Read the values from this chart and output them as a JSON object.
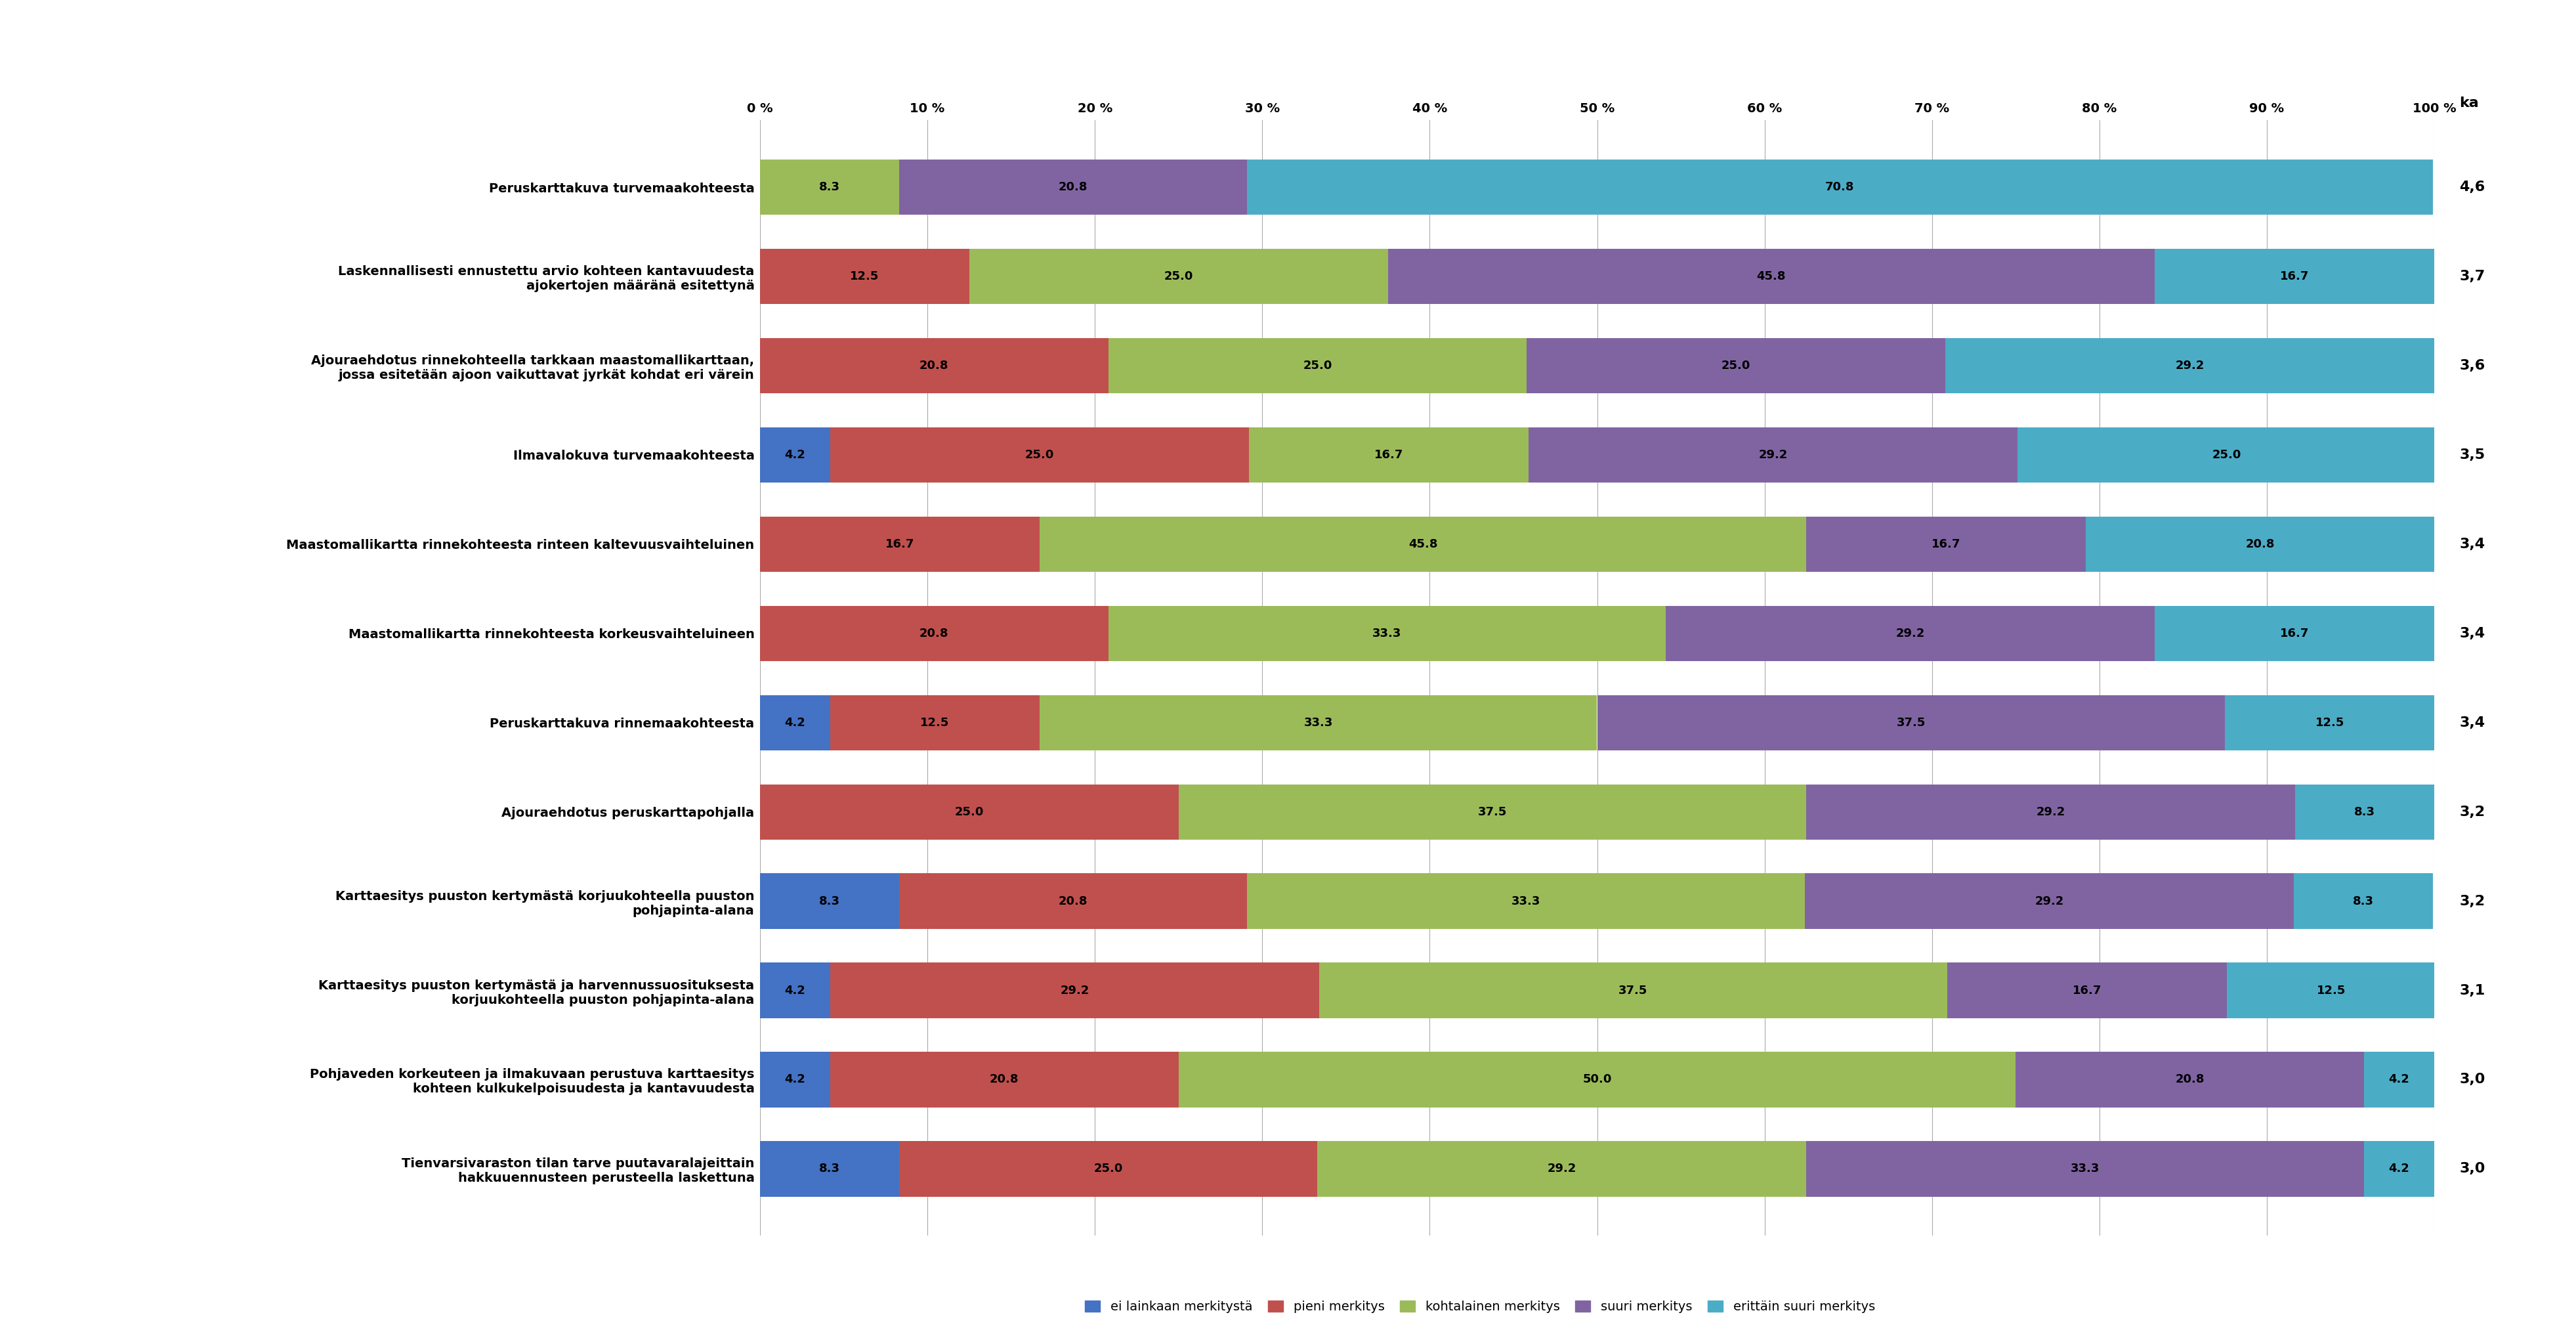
{
  "categories": [
    "Peruskarttakuva turvemaakohteesta",
    "Laskennallisesti ennustettu arvio kohteen kantavuudesta\najokertojen määränä esitettynä",
    "Ajouraehdotus rinnekohteella tarkkaan maastomallikarttaan,\njossa esitetään ajoon vaikuttavat jyrkät kohdat eri värein",
    "Ilmavalokuva turvemaakohteesta",
    "Maastomallikartta rinnekohteesta rinteen kaltevuusvaihteluinen",
    "Maastomallikartta rinnekohteesta korkeusvaihteluineen",
    "Peruskarttakuva rinnemaakohteesta",
    "Ajouraehdotus peruskarttapohjalla",
    "Karttaesitys puuston kertymästä korjuukohteella puuston\npohjapinta-alana",
    "Karttaesitys puuston kertymästä ja harvennussuosituksesta\nkorjuukohteella puuston pohjapinta-alana",
    "Pohjaveden korkeuteen ja ilmakuvaan perustuva karttaesitys\nkohteen kulkukelpoisuudesta ja kantavuudesta",
    "Tienvarsivaraston tilan tarve puutavaralajeittain\nhakkuuennusteen perusteella laskettuna"
  ],
  "ka_values": [
    "4,6",
    "3,7",
    "3,6",
    "3,5",
    "3,4",
    "3,4",
    "3,4",
    "3,2",
    "3,2",
    "3,1",
    "3,0",
    "3,0"
  ],
  "segments": [
    [
      0.0,
      0.0,
      8.3,
      20.8,
      70.8
    ],
    [
      0.0,
      12.5,
      25.0,
      45.8,
      16.7
    ],
    [
      0.0,
      20.8,
      25.0,
      25.0,
      29.2
    ],
    [
      4.2,
      25.0,
      16.7,
      29.2,
      25.0
    ],
    [
      0.0,
      16.7,
      45.8,
      16.7,
      20.8
    ],
    [
      0.0,
      20.8,
      33.3,
      29.2,
      16.7
    ],
    [
      4.2,
      12.5,
      33.3,
      37.5,
      12.5
    ],
    [
      0.0,
      25.0,
      37.5,
      29.2,
      8.3
    ],
    [
      8.3,
      20.8,
      33.3,
      29.2,
      8.3
    ],
    [
      4.2,
      29.2,
      37.5,
      16.7,
      12.5
    ],
    [
      4.2,
      20.8,
      50.0,
      20.8,
      4.2
    ],
    [
      8.3,
      25.0,
      29.2,
      33.3,
      4.2
    ]
  ],
  "colors": [
    "#4472C4",
    "#C0504D",
    "#9BBB59",
    "#8064A2",
    "#4BACC6"
  ],
  "legend_labels": [
    "ei lainkaan merkitystä",
    "pieni merkitys",
    "kohtalainen merkitys",
    "suuri merkitys",
    "erittäin suuri merkitys"
  ],
  "bar_height": 0.62,
  "background_color": "#FFFFFF",
  "tick_fontsize": 14,
  "legend_fontsize": 14,
  "value_fontsize": 13,
  "ka_fontsize": 16
}
